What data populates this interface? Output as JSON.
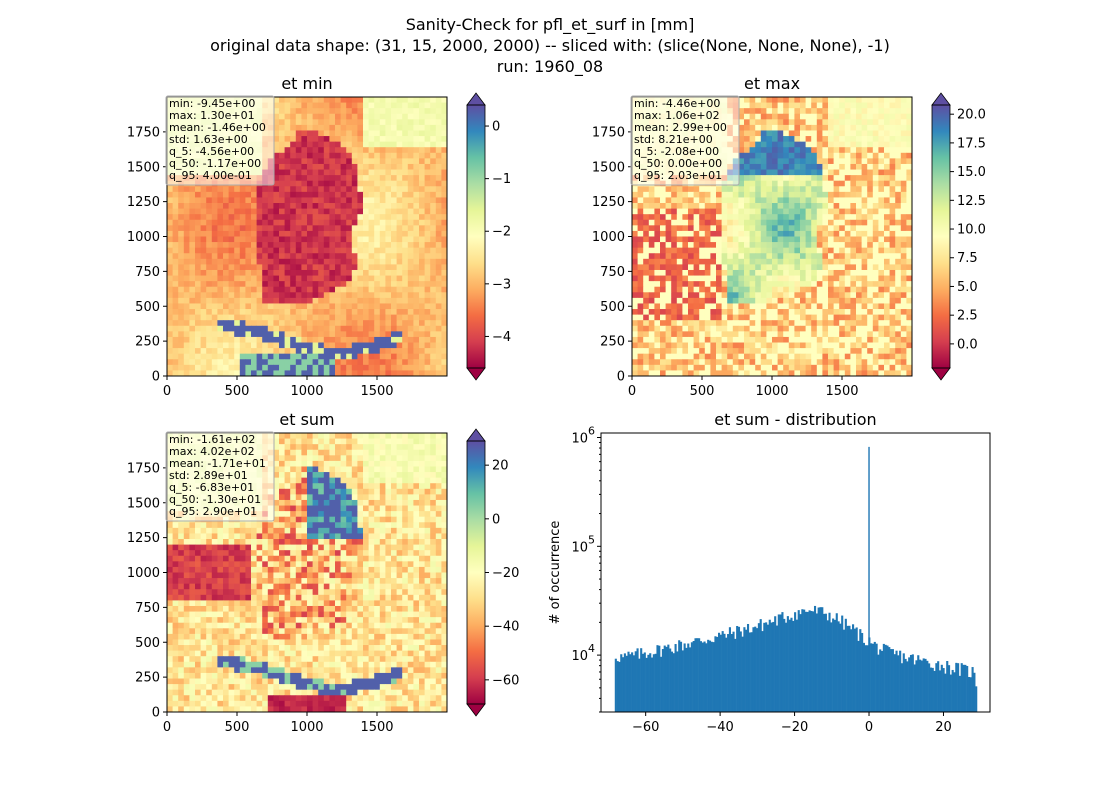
{
  "figure": {
    "suptitle": [
      "Sanity-Check for pfl_et_surf in [mm]",
      "original data shape: (31, 15, 2000, 2000) -- sliced with: (slice(None, None, None), -1)",
      "run: 1960_08"
    ]
  },
  "chart_data": [
    {
      "type": "heatmap",
      "title": "et min",
      "xlabel": "",
      "ylabel": "",
      "xlim": [
        0,
        2000
      ],
      "ylim": [
        0,
        2000
      ],
      "xticks": [
        0,
        500,
        1000,
        1500
      ],
      "yticks": [
        0,
        250,
        500,
        750,
        1000,
        1250,
        1500,
        1750
      ],
      "colormap": "Spectral",
      "colorbar": {
        "range": [
          -4.6,
          0.4
        ],
        "ticks": [
          0,
          -1,
          -2,
          -3,
          -4
        ],
        "tick_labels": [
          "0",
          "−1",
          "−2",
          "−3",
          "−4"
        ],
        "extend": "both"
      },
      "stats": [
        "min: -9.45e+00",
        "max: 1.30e+01",
        "mean: -1.46e+00",
        "std: 1.63e+00",
        "q_5: -4.56e+00",
        "q_50: -1.17e+00",
        "q_95: 4.00e-01"
      ]
    },
    {
      "type": "heatmap",
      "title": "et max",
      "xlabel": "",
      "ylabel": "",
      "xlim": [
        0,
        2000
      ],
      "ylim": [
        0,
        2000
      ],
      "xticks": [
        0,
        500,
        1000,
        1500
      ],
      "yticks": [
        0,
        250,
        500,
        750,
        1000,
        1250,
        1500,
        1750
      ],
      "colormap": "Spectral",
      "colorbar": {
        "range": [
          -2.1,
          20.8
        ],
        "ticks": [
          20,
          17.5,
          15,
          12.5,
          10,
          7.5,
          5,
          2.5,
          0
        ],
        "tick_labels": [
          "20.0",
          "17.5",
          "15.0",
          "12.5",
          "10.0",
          "7.5",
          "5.0",
          "2.5",
          "0.0"
        ],
        "extend": "both"
      },
      "stats": [
        "min: -4.46e+00",
        "max: 1.06e+02",
        "mean: 2.99e+00",
        "std: 8.21e+00",
        "q_5: -2.08e+00",
        "q_50: 0.00e+00",
        "q_95: 2.03e+01"
      ]
    },
    {
      "type": "heatmap",
      "title": "et sum",
      "xlabel": "",
      "ylabel": "",
      "xlim": [
        0,
        2000
      ],
      "ylim": [
        0,
        2000
      ],
      "xticks": [
        0,
        500,
        1000,
        1500
      ],
      "yticks": [
        0,
        250,
        500,
        750,
        1000,
        1250,
        1500,
        1750
      ],
      "colormap": "Spectral",
      "colorbar": {
        "range": [
          -69,
          29
        ],
        "ticks": [
          20,
          0,
          -20,
          -40,
          -60
        ],
        "tick_labels": [
          "20",
          "0",
          "−20",
          "−40",
          "−60"
        ],
        "extend": "both"
      },
      "stats": [
        "min: -1.61e+02",
        "max: 4.02e+02",
        "mean: -1.71e+01",
        "std: 2.89e+01",
        "q_5: -6.83e+01",
        "q_50: -1.30e+01",
        "q_95: 2.90e+01"
      ]
    },
    {
      "type": "bar",
      "subtype": "histogram",
      "title": "et sum - distribution",
      "xlabel": "",
      "ylabel": "# of occurrence",
      "yscale": "log",
      "xlim": [
        -72,
        32.5
      ],
      "ylim": [
        3000,
        1100000
      ],
      "xticks": [
        -60,
        -40,
        -20,
        0,
        20
      ],
      "xtick_labels": [
        "−60",
        "−40",
        "−20",
        "0",
        "20"
      ],
      "yticks": [
        10000,
        100000,
        1000000
      ],
      "ytick_labels": [
        [
          "10",
          "4"
        ],
        [
          "10",
          "5"
        ],
        [
          "10",
          "6"
        ]
      ],
      "color": "#1f77b4",
      "bin_range": [
        -68.3,
        29.0
      ],
      "profile_x": [
        -68.3,
        -66,
        -60,
        -50,
        -40,
        -30,
        -25,
        -20,
        -16,
        -12,
        -8,
        -4,
        -1,
        0,
        1,
        4,
        10,
        20,
        28,
        29.0
      ],
      "profile_y": [
        10000,
        9500,
        10500,
        12500,
        15000,
        18500,
        21000,
        24000,
        26000,
        24500,
        21000,
        17000,
        14000,
        13500,
        12500,
        11000,
        9500,
        8000,
        7000,
        5000
      ],
      "spike": {
        "x": 0,
        "value": 820000
      }
    }
  ]
}
